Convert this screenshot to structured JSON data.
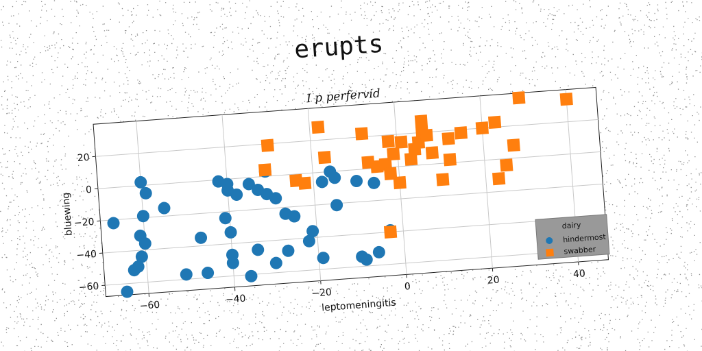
{
  "chart_data": {
    "type": "scatter",
    "suptitle": "erupts",
    "title": "I p perfervid",
    "xlabel": "leptomeningitis",
    "ylabel": "bluewing",
    "xlim": [
      -70,
      47
    ],
    "ylim": [
      -67,
      40
    ],
    "xticks": [
      -60,
      -40,
      -20,
      0,
      20,
      40
    ],
    "yticks": [
      -60,
      -40,
      -20,
      0,
      20
    ],
    "grid": true,
    "legend": {
      "placement": "lower-right",
      "title": "dairy",
      "background": "#999999"
    },
    "series": [
      {
        "name": "hindermost",
        "marker": "circle",
        "color": "#1f77b4",
        "points": [
          [
            -60,
            2
          ],
          [
            -59,
            -5
          ],
          [
            -67,
            -22
          ],
          [
            -61,
            -31
          ],
          [
            -60,
            -19
          ],
          [
            -60,
            -36
          ],
          [
            -61,
            -44
          ],
          [
            -62,
            -50
          ],
          [
            -63,
            -52
          ],
          [
            -65,
            -65
          ],
          [
            -55,
            -15
          ],
          [
            -51,
            -57
          ],
          [
            -46,
            -57
          ],
          [
            -47,
            -35
          ],
          [
            -42,
            -1
          ],
          [
            -40,
            -3
          ],
          [
            -40,
            -7
          ],
          [
            -38,
            -10
          ],
          [
            -35,
            -4
          ],
          [
            -31,
            3
          ],
          [
            -33,
            -8
          ],
          [
            -31,
            -11
          ],
          [
            -29,
            -14
          ],
          [
            -41,
            -24
          ],
          [
            -40,
            -33
          ],
          [
            -40,
            -47
          ],
          [
            -40,
            -52
          ],
          [
            -36,
            -61
          ],
          [
            -34,
            -45
          ],
          [
            -30,
            -54
          ],
          [
            -27,
            -47
          ],
          [
            -27,
            -24
          ],
          [
            -25,
            -26
          ],
          [
            -22,
            -42
          ],
          [
            -21,
            -36
          ],
          [
            -19,
            -53
          ],
          [
            -18,
            -6
          ],
          [
            -16,
            0
          ],
          [
            -15,
            -4
          ],
          [
            -15,
            -21
          ],
          [
            -10,
            -7
          ],
          [
            -10,
            -54
          ],
          [
            -9,
            -56
          ],
          [
            -6,
            -9
          ],
          [
            -6,
            -52
          ],
          [
            -3,
            -39
          ]
        ]
      },
      {
        "name": "swabber",
        "marker": "square",
        "color": "#ff7f0e",
        "points": [
          [
            -30,
            19
          ],
          [
            -31,
            4
          ],
          [
            -24,
            -4
          ],
          [
            -22,
            -6
          ],
          [
            -18,
            28
          ],
          [
            -17,
            9
          ],
          [
            -8,
            22
          ],
          [
            -7,
            4
          ],
          [
            -5,
            1
          ],
          [
            -3,
            2
          ],
          [
            -2,
            16
          ],
          [
            -2,
            -4
          ],
          [
            0,
            -10
          ],
          [
            -1,
            8
          ],
          [
            1,
            15
          ],
          [
            3,
            4
          ],
          [
            4,
            10
          ],
          [
            5,
            14
          ],
          [
            6,
            20
          ],
          [
            6,
            27
          ],
          [
            7,
            18
          ],
          [
            8,
            7
          ],
          [
            10,
            -10
          ],
          [
            12,
            15
          ],
          [
            12,
            2
          ],
          [
            15,
            18
          ],
          [
            20,
            20
          ],
          [
            23,
            23
          ],
          [
            23,
            -12
          ],
          [
            25,
            -4
          ],
          [
            27,
            8
          ],
          [
            29,
            37
          ],
          [
            40,
            34
          ],
          [
            -3,
            -40
          ]
        ]
      }
    ]
  }
}
